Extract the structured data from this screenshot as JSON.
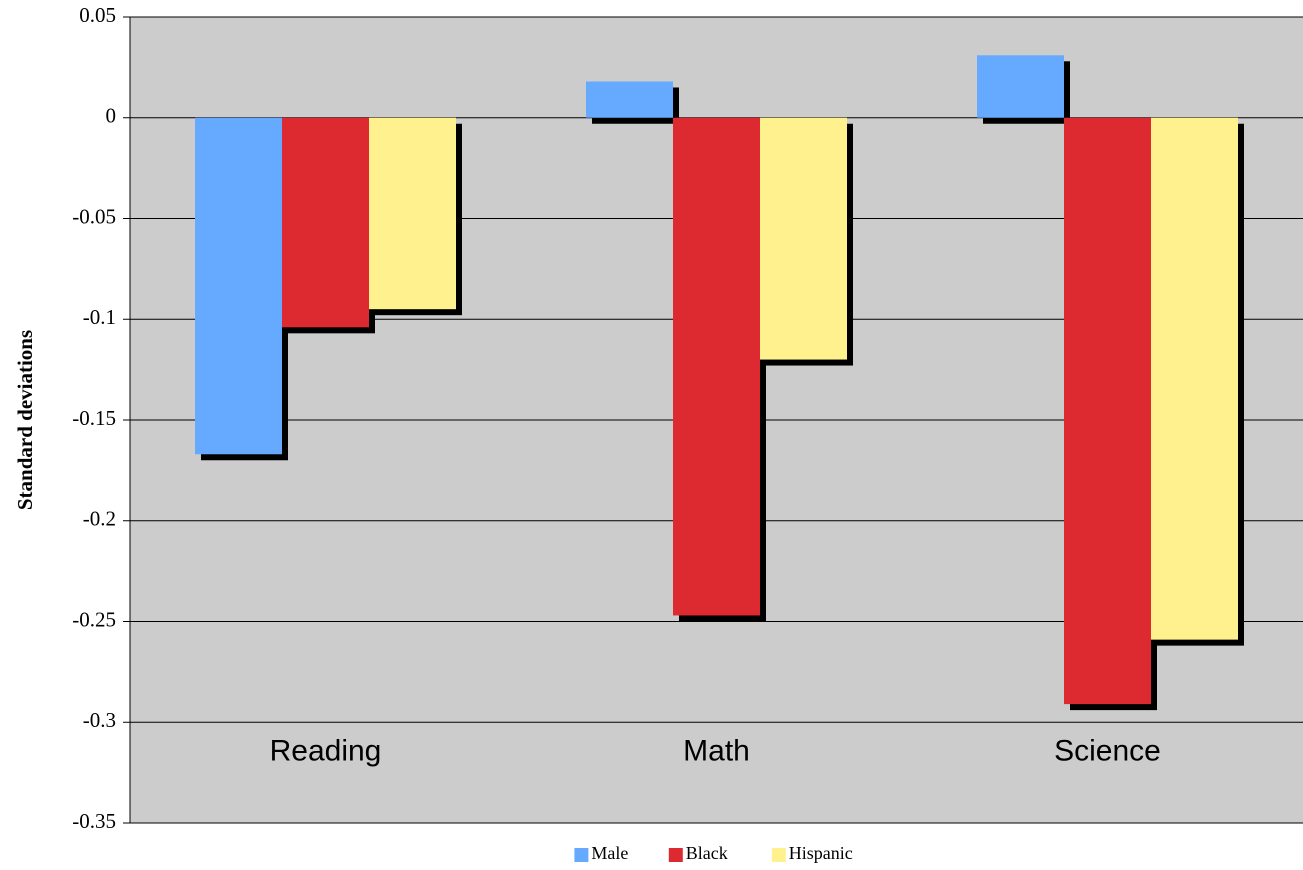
{
  "chart_data": {
    "type": "bar",
    "title": "",
    "xlabel": "",
    "ylabel": "Standard deviations",
    "categories": [
      "Reading",
      "Math",
      "Science"
    ],
    "series": [
      {
        "name": "Male",
        "values": [
          -0.167,
          0.018,
          0.031
        ],
        "color": "#66aaff"
      },
      {
        "name": "Black",
        "values": [
          -0.104,
          -0.247,
          -0.291
        ],
        "color": "#dd2a30"
      },
      {
        "name": "Hispanic",
        "values": [
          -0.095,
          -0.12,
          -0.259
        ],
        "color": "#fff28e"
      }
    ],
    "ylim": [
      -0.35,
      0.05
    ],
    "yticks": [
      0.05,
      0,
      -0.05,
      -0.1,
      -0.15,
      -0.2,
      -0.25,
      -0.3,
      -0.35
    ],
    "ytick_labels": [
      "0.05",
      "0",
      "-0.05",
      "-0.1",
      "-0.15",
      "-0.2",
      "-0.25",
      "-0.3",
      "-0.35"
    ],
    "category_label_value": -0.315,
    "grid": true,
    "legend_position": "bottom",
    "plot_background": "#cccccc"
  }
}
